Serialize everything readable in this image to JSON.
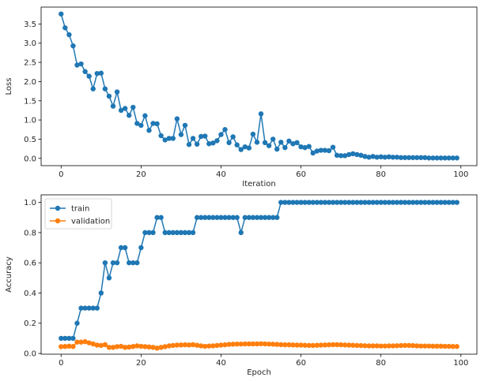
{
  "chart_data": [
    {
      "type": "line",
      "xlabel": "Iteration",
      "ylabel": "Loss",
      "xlim": [
        -5,
        104
      ],
      "ylim": [
        -0.19,
        3.94
      ],
      "xticks": [
        0,
        20,
        40,
        60,
        80,
        100
      ],
      "yticks": [
        0.0,
        0.5,
        1.0,
        1.5,
        2.0,
        2.5,
        3.0,
        3.5
      ],
      "legend": null,
      "series": [
        {
          "color": "#1f77b4",
          "marker": "circle",
          "x": [
            0,
            1,
            2,
            3,
            4,
            5,
            6,
            7,
            8,
            9,
            10,
            11,
            12,
            13,
            14,
            15,
            16,
            17,
            18,
            19,
            20,
            21,
            22,
            23,
            24,
            25,
            26,
            27,
            28,
            29,
            30,
            31,
            32,
            33,
            34,
            35,
            36,
            37,
            38,
            39,
            40,
            41,
            42,
            43,
            44,
            45,
            46,
            47,
            48,
            49,
            50,
            51,
            52,
            53,
            54,
            55,
            56,
            57,
            58,
            59,
            60,
            61,
            62,
            63,
            64,
            65,
            66,
            67,
            68,
            69,
            70,
            71,
            72,
            73,
            74,
            75,
            76,
            77,
            78,
            79,
            80,
            81,
            82,
            83,
            84,
            85,
            86,
            87,
            88,
            89,
            90,
            91,
            92,
            93,
            94,
            95,
            96,
            97,
            98,
            99
          ],
          "values": [
            3.76,
            3.4,
            3.22,
            2.93,
            2.43,
            2.46,
            2.26,
            2.14,
            1.81,
            2.21,
            2.22,
            1.81,
            1.62,
            1.36,
            1.73,
            1.25,
            1.3,
            1.12,
            1.33,
            0.91,
            0.86,
            1.11,
            0.73,
            0.91,
            0.9,
            0.59,
            0.48,
            0.52,
            0.52,
            1.03,
            0.62,
            0.86,
            0.36,
            0.52,
            0.37,
            0.57,
            0.58,
            0.38,
            0.4,
            0.46,
            0.62,
            0.75,
            0.41,
            0.56,
            0.35,
            0.23,
            0.3,
            0.27,
            0.63,
            0.42,
            1.16,
            0.41,
            0.33,
            0.5,
            0.24,
            0.42,
            0.28,
            0.45,
            0.38,
            0.41,
            0.3,
            0.28,
            0.31,
            0.14,
            0.19,
            0.21,
            0.21,
            0.2,
            0.29,
            0.08,
            0.07,
            0.07,
            0.1,
            0.12,
            0.1,
            0.08,
            0.05,
            0.03,
            0.05,
            0.03,
            0.04,
            0.03,
            0.04,
            0.03,
            0.03,
            0.02,
            0.02,
            0.02,
            0.02,
            0.02,
            0.02,
            0.02,
            0.01,
            0.01,
            0.01,
            0.01,
            0.01,
            0.01,
            0.01,
            0.01
          ]
        }
      ]
    },
    {
      "type": "line",
      "xlabel": "Epoch",
      "ylabel": "Accuracy",
      "xlim": [
        -5,
        104
      ],
      "ylim": [
        -0.005,
        1.05
      ],
      "xticks": [
        0,
        20,
        40,
        60,
        80,
        100
      ],
      "yticks": [
        0.0,
        0.2,
        0.4,
        0.6,
        0.8,
        1.0
      ],
      "legend": "upper-left",
      "series": [
        {
          "name": "train",
          "color": "#1f77b4",
          "marker": "circle",
          "x": [
            0,
            1,
            2,
            3,
            4,
            5,
            6,
            7,
            8,
            9,
            10,
            11,
            12,
            13,
            14,
            15,
            16,
            17,
            18,
            19,
            20,
            21,
            22,
            23,
            24,
            25,
            26,
            27,
            28,
            29,
            30,
            31,
            32,
            33,
            34,
            35,
            36,
            37,
            38,
            39,
            40,
            41,
            42,
            43,
            44,
            45,
            46,
            47,
            48,
            49,
            50,
            51,
            52,
            53,
            54,
            55,
            56,
            57,
            58,
            59,
            60,
            61,
            62,
            63,
            64,
            65,
            66,
            67,
            68,
            69,
            70,
            71,
            72,
            73,
            74,
            75,
            76,
            77,
            78,
            79,
            80,
            81,
            82,
            83,
            84,
            85,
            86,
            87,
            88,
            89,
            90,
            91,
            92,
            93,
            94,
            95,
            96,
            97,
            98,
            99
          ],
          "values": [
            0.1,
            0.1,
            0.1,
            0.1,
            0.2,
            0.3,
            0.3,
            0.3,
            0.3,
            0.3,
            0.4,
            0.6,
            0.5,
            0.6,
            0.6,
            0.7,
            0.7,
            0.6,
            0.6,
            0.6,
            0.7,
            0.8,
            0.8,
            0.8,
            0.9,
            0.9,
            0.8,
            0.8,
            0.8,
            0.8,
            0.8,
            0.8,
            0.8,
            0.8,
            0.9,
            0.9,
            0.9,
            0.9,
            0.9,
            0.9,
            0.9,
            0.9,
            0.9,
            0.9,
            0.9,
            0.8,
            0.9,
            0.9,
            0.9,
            0.9,
            0.9,
            0.9,
            0.9,
            0.9,
            0.9,
            1.0,
            1.0,
            1.0,
            1.0,
            1.0,
            1.0,
            1.0,
            1.0,
            1.0,
            1.0,
            1.0,
            1.0,
            1.0,
            1.0,
            1.0,
            1.0,
            1.0,
            1.0,
            1.0,
            1.0,
            1.0,
            1.0,
            1.0,
            1.0,
            1.0,
            1.0,
            1.0,
            1.0,
            1.0,
            1.0,
            1.0,
            1.0,
            1.0,
            1.0,
            1.0,
            1.0,
            1.0,
            1.0,
            1.0,
            1.0,
            1.0,
            1.0,
            1.0,
            1.0,
            1.0
          ]
        },
        {
          "name": "validation",
          "color": "#ff7f0e",
          "marker": "circle",
          "x": [
            0,
            1,
            2,
            3,
            4,
            5,
            6,
            7,
            8,
            9,
            10,
            11,
            12,
            13,
            14,
            15,
            16,
            17,
            18,
            19,
            20,
            21,
            22,
            23,
            24,
            25,
            26,
            27,
            28,
            29,
            30,
            31,
            32,
            33,
            34,
            35,
            36,
            37,
            38,
            39,
            40,
            41,
            42,
            43,
            44,
            45,
            46,
            47,
            48,
            49,
            50,
            51,
            52,
            53,
            54,
            55,
            56,
            57,
            58,
            59,
            60,
            61,
            62,
            63,
            64,
            65,
            66,
            67,
            68,
            69,
            70,
            71,
            72,
            73,
            74,
            75,
            76,
            77,
            78,
            79,
            80,
            81,
            82,
            83,
            84,
            85,
            86,
            87,
            88,
            89,
            90,
            91,
            92,
            93,
            94,
            95,
            96,
            97,
            98,
            99
          ],
          "values": [
            0.045,
            0.046,
            0.048,
            0.046,
            0.075,
            0.075,
            0.078,
            0.07,
            0.063,
            0.055,
            0.053,
            0.058,
            0.04,
            0.04,
            0.045,
            0.047,
            0.04,
            0.042,
            0.046,
            0.05,
            0.047,
            0.045,
            0.043,
            0.04,
            0.035,
            0.04,
            0.045,
            0.05,
            0.053,
            0.055,
            0.056,
            0.057,
            0.056,
            0.058,
            0.054,
            0.05,
            0.047,
            0.049,
            0.05,
            0.053,
            0.055,
            0.057,
            0.06,
            0.061,
            0.062,
            0.062,
            0.063,
            0.063,
            0.063,
            0.063,
            0.064,
            0.063,
            0.062,
            0.061,
            0.06,
            0.058,
            0.057,
            0.057,
            0.056,
            0.055,
            0.055,
            0.054,
            0.053,
            0.053,
            0.054,
            0.055,
            0.056,
            0.057,
            0.058,
            0.058,
            0.057,
            0.056,
            0.055,
            0.054,
            0.053,
            0.052,
            0.051,
            0.05,
            0.05,
            0.05,
            0.049,
            0.049,
            0.05,
            0.05,
            0.051,
            0.052,
            0.053,
            0.053,
            0.052,
            0.05,
            0.049,
            0.049,
            0.049,
            0.048,
            0.048,
            0.048,
            0.047,
            0.047,
            0.046,
            0.046
          ]
        }
      ]
    }
  ]
}
